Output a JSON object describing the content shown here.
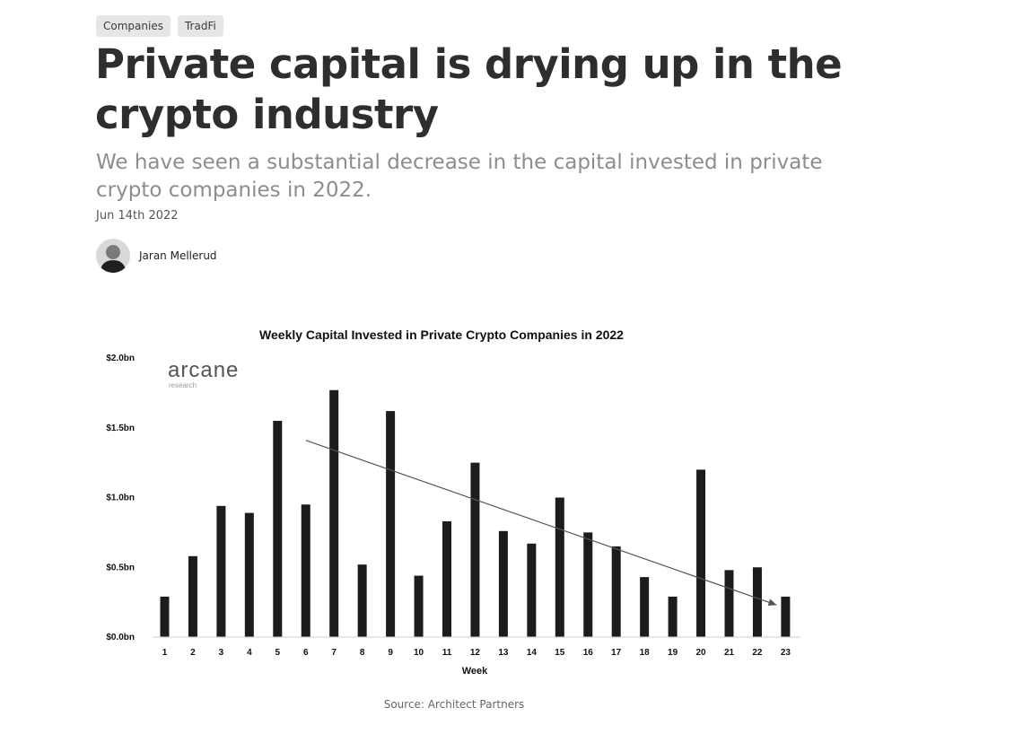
{
  "tags": [
    "Companies",
    "TradFi"
  ],
  "article": {
    "title": "Private capital is drying up in the crypto industry",
    "subtitle": "We have seen a substantial decrease in the capital invested in private crypto companies in 2022.",
    "date": "Jun 14th 2022",
    "author": "Jaran Mellerud"
  },
  "chart_logo": {
    "name": "arcane",
    "sub": "research"
  },
  "chart_data": {
    "type": "bar",
    "title": "Weekly Capital Invested in Private Crypto Companies in 2022",
    "xlabel": "Week",
    "ylabel": "",
    "categories": [
      "1",
      "2",
      "3",
      "4",
      "5",
      "6",
      "7",
      "8",
      "9",
      "10",
      "11",
      "12",
      "13",
      "14",
      "15",
      "16",
      "17",
      "18",
      "19",
      "20",
      "21",
      "22",
      "23"
    ],
    "values": [
      0.29,
      0.58,
      0.94,
      0.89,
      1.55,
      0.95,
      1.77,
      0.52,
      1.62,
      0.44,
      0.83,
      1.25,
      0.76,
      0.67,
      1.0,
      0.75,
      0.65,
      0.43,
      0.29,
      1.2,
      0.48,
      0.5,
      0.29
    ],
    "ylim": [
      0,
      2.0
    ],
    "yticks": [
      0,
      0.5,
      1.0,
      1.5,
      2.0
    ],
    "ytick_labels": [
      "$0.0bn",
      "$0.5bn",
      "$1.0bn",
      "$1.5bn",
      "$2.0bn"
    ],
    "trend": {
      "from": {
        "x": 6,
        "y": 1.41
      },
      "to": {
        "x": 23,
        "y": 0.23
      }
    },
    "bar_color": "#1c1c1c",
    "grid": false
  },
  "source": "Source: Architect Partners"
}
